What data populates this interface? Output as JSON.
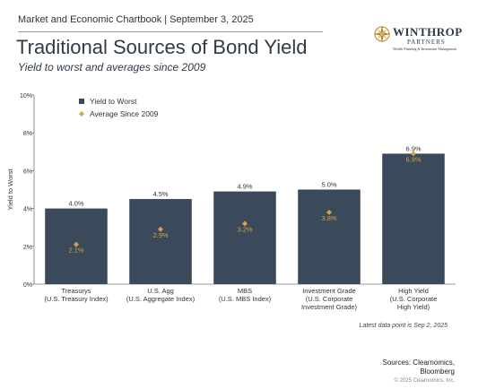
{
  "header": {
    "chartbook": "Market and Economic Chartbook | September 3, 2025",
    "title": "Traditional Sources of Bond Yield",
    "subtitle": "Yield to worst and averages since 2009"
  },
  "logo": {
    "name": "WINTHROP",
    "partners": "PARTNERS",
    "tagline": "Wealth Planning & Investment Management",
    "icon": "compass-rose-icon"
  },
  "footer": {
    "note": "Latest data point is Sep 2, 2025",
    "sources_line1": "Sources: Clearnomics,",
    "sources_line2": "Bloomberg",
    "copyright": "© 2025 Clearnomics, Inc."
  },
  "chart_data": {
    "type": "bar",
    "ylabel": "Yield to Worst",
    "xlabel": "",
    "ylim": [
      0,
      10
    ],
    "yticks": [
      "0%",
      "2%",
      "4%",
      "6%",
      "8%",
      "10%"
    ],
    "grid": false,
    "legend_position": "top-left",
    "categories": [
      [
        "Treasurys",
        "(U.S. Treasury Index)"
      ],
      [
        "U.S. Agg",
        "(U.S. Aggregate Index)"
      ],
      [
        "MBS",
        "(U.S. MBS Index)"
      ],
      [
        "Investment Grade",
        "(U.S. Corporate",
        "Investment Grade)"
      ],
      [
        "High Yield",
        "(U.S. Corporate",
        "High Yield)"
      ]
    ],
    "series": [
      {
        "name": "Yield to Worst",
        "marker": "square",
        "color": "#3b4a5a",
        "values": [
          4.0,
          4.5,
          4.9,
          5.0,
          6.9
        ],
        "labels": [
          "4.0%",
          "4.5%",
          "4.9%",
          "5.0%",
          "6.9%"
        ]
      },
      {
        "name": "Average Since 2009",
        "marker": "diamond",
        "color": "#d9a04a",
        "values": [
          2.1,
          2.9,
          3.2,
          3.8,
          6.9
        ],
        "labels": [
          "2.1%",
          "2.9%",
          "3.2%",
          "3.8%",
          "6.9%"
        ]
      }
    ]
  }
}
